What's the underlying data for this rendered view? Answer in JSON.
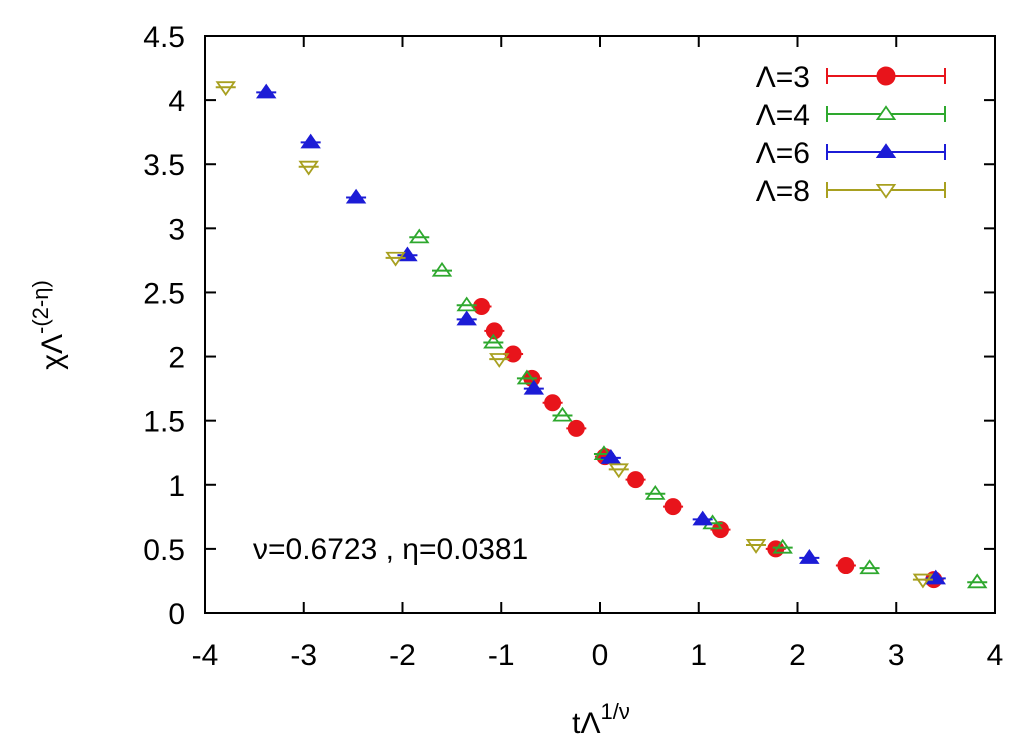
{
  "chart_data": {
    "type": "scatter",
    "xlabel_base": "tΛ",
    "xlabel_sup": "1/ν",
    "ylabel_base": "χΛ",
    "ylabel_sup": "-(2-η)",
    "xlim": [
      -4,
      4
    ],
    "ylim": [
      0,
      4.5
    ],
    "x_ticks": [
      -4,
      -3,
      -2,
      -1,
      0,
      1,
      2,
      3,
      4
    ],
    "y_ticks": [
      0,
      0.5,
      1,
      1.5,
      2,
      2.5,
      3,
      3.5,
      4,
      4.5
    ],
    "x_tick_labels": [
      "-4",
      "-3",
      "-2",
      "-1",
      "0",
      "1",
      "2",
      "3",
      "4"
    ],
    "y_tick_labels": [
      "0",
      "0.5",
      "1",
      "1.5",
      "2",
      "2.5",
      "3",
      "3.5",
      "4",
      "4.5"
    ],
    "annotation": "ν=0.6723 , η=0.0381",
    "legend_position": "top-right",
    "grid": false,
    "series": [
      {
        "name": "Λ=3",
        "marker": "filled-circle",
        "color": "#e8141b",
        "points": [
          [
            -1.2,
            2.39
          ],
          [
            -1.07,
            2.2
          ],
          [
            -0.88,
            2.02
          ],
          [
            -0.69,
            1.83
          ],
          [
            -0.48,
            1.64
          ],
          [
            -0.24,
            1.44
          ],
          [
            0.05,
            1.22
          ],
          [
            0.36,
            1.04
          ],
          [
            0.74,
            0.83
          ],
          [
            1.22,
            0.65
          ],
          [
            1.78,
            0.5
          ],
          [
            2.49,
            0.37
          ],
          [
            3.38,
            0.26
          ]
        ]
      },
      {
        "name": "Λ=4",
        "marker": "open-triangle-up",
        "color": "#2ea82e",
        "points": [
          [
            -1.83,
            2.93
          ],
          [
            -1.6,
            2.67
          ],
          [
            -1.35,
            2.4
          ],
          [
            -1.08,
            2.11
          ],
          [
            -0.74,
            1.83
          ],
          [
            -0.38,
            1.54
          ],
          [
            0.04,
            1.24
          ],
          [
            0.56,
            0.93
          ],
          [
            1.14,
            0.7
          ],
          [
            1.85,
            0.51
          ],
          [
            2.73,
            0.35
          ],
          [
            3.82,
            0.24
          ]
        ]
      },
      {
        "name": "Λ=6",
        "marker": "filled-triangle-up",
        "color": "#1c1cd6",
        "points": [
          [
            -3.38,
            4.06
          ],
          [
            -2.93,
            3.67
          ],
          [
            -2.47,
            3.24
          ],
          [
            -1.95,
            2.79
          ],
          [
            -1.35,
            2.29
          ],
          [
            -0.67,
            1.75
          ],
          [
            0.11,
            1.21
          ],
          [
            1.04,
            0.73
          ],
          [
            2.12,
            0.43
          ],
          [
            3.4,
            0.27
          ]
        ]
      },
      {
        "name": "Λ=8",
        "marker": "open-triangle-down",
        "color": "#a8a020",
        "points": [
          [
            -3.79,
            4.1
          ],
          [
            -2.95,
            3.48
          ],
          [
            -2.07,
            2.77
          ],
          [
            -1.02,
            1.98
          ],
          [
            0.19,
            1.12
          ],
          [
            1.58,
            0.53
          ],
          [
            3.27,
            0.26
          ]
        ]
      }
    ]
  }
}
